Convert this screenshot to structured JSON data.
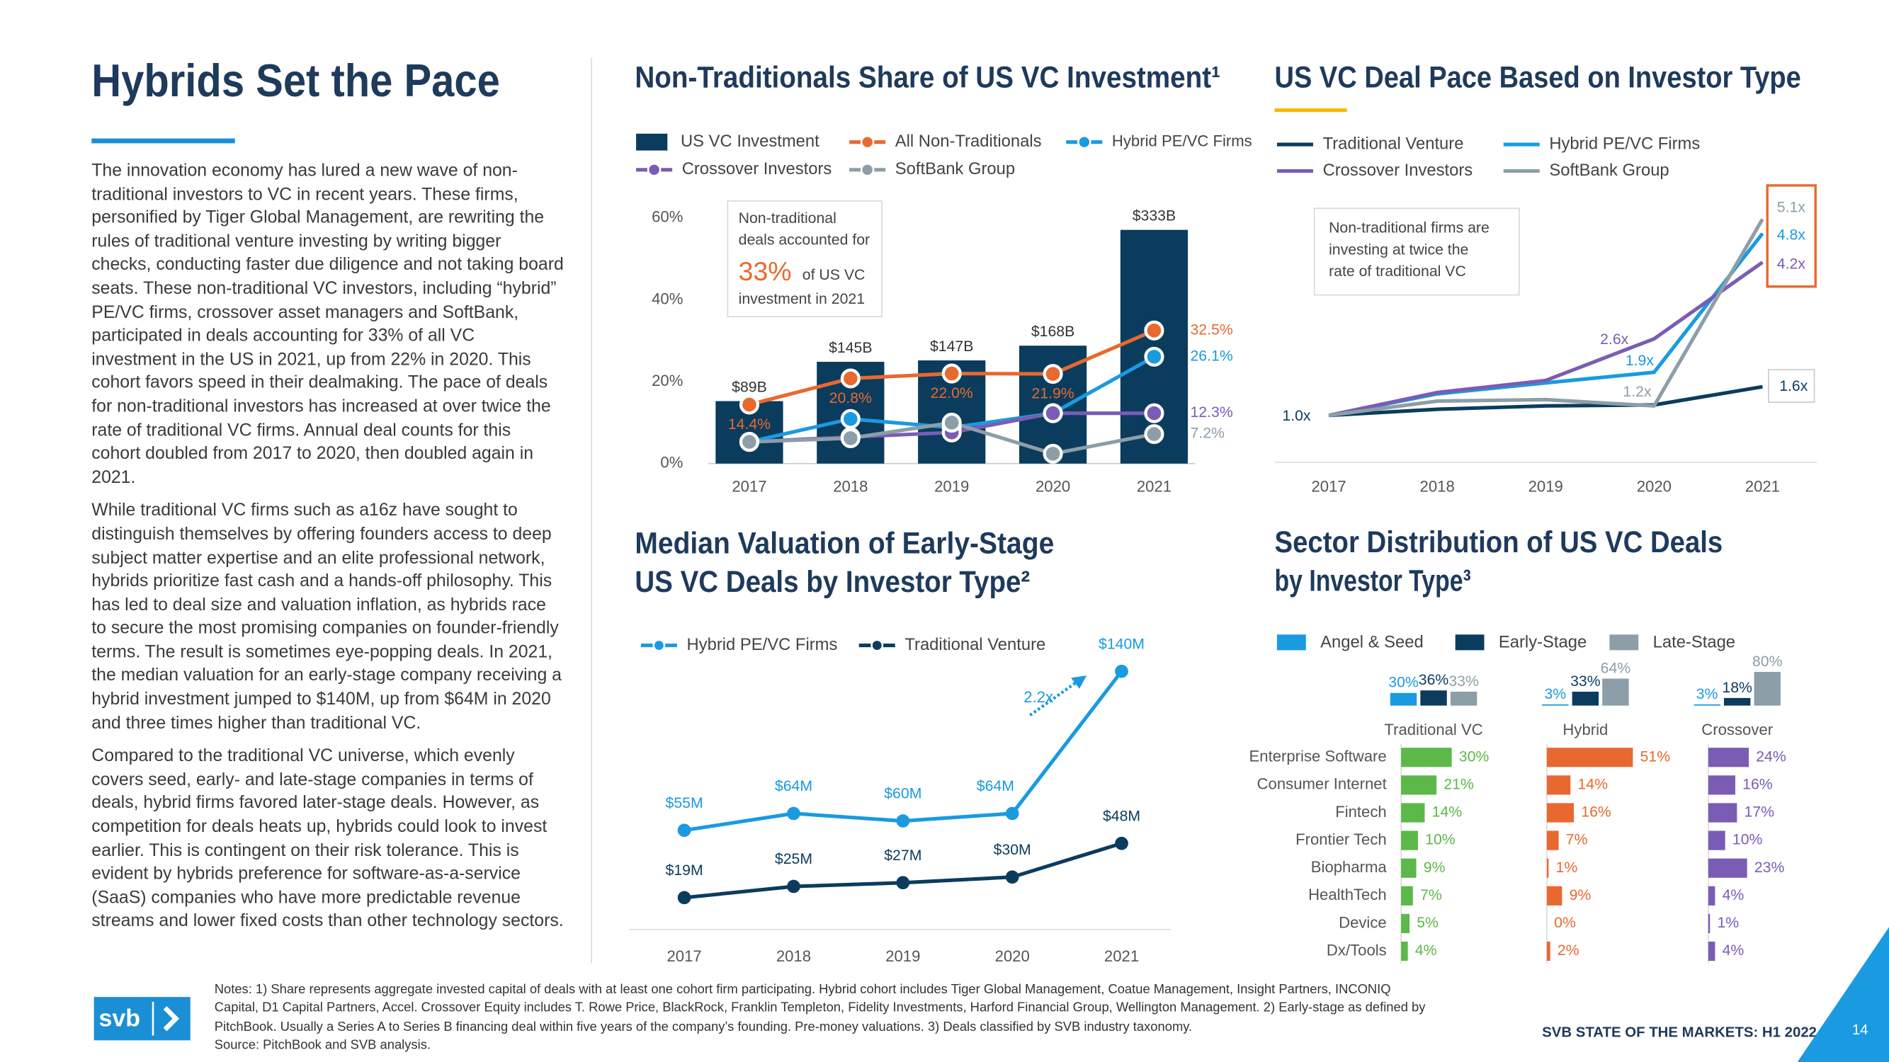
{
  "header": {
    "title": "Hybrids Set the Pace"
  },
  "body": {
    "paragraphs": [
      "The innovation economy has lured a new wave of non-traditional investors to VC in recent years. These firms, personified by Tiger Global Management, are rewriting the rules of traditional venture investing by writing bigger checks, conducting faster due diligence and not taking board seats. These non-traditional VC investors, including “hybrid” PE/VC firms, crossover asset managers and SoftBank, participated in deals accounting for 33% of all VC investment in the US in 2021, up from 22% in 2020. This cohort favors speed in their dealmaking. The pace of deals for non-traditional investors has increased at over twice the rate of traditional VC firms. Annual deal counts for this cohort doubled from 2017 to 2020, then doubled again in 2021.",
      "While traditional VC firms such as a16z have sought to distinguish themselves by offering founders access to deep subject matter expertise and an elite professional network, hybrids prioritize fast cash and a hands-off philosophy. This has led to deal size and valuation inflation, as hybrids race to secure the most promising companies on founder-friendly terms. The result is sometimes eye-popping deals. In 2021, the median valuation for an early-stage company receiving a hybrid investment jumped to $140M, up from $64M in 2020 and three times higher than traditional VC.",
      "Compared to the traditional VC universe, which evenly covers seed, early- and late-stage companies in terms of deals, hybrid firms favored later-stage deals. However, as competition for deals heats up, hybrids could look to invest earlier. This is contingent on their risk tolerance. This is evident by hybrids preference for software-as-a-service (SaaS) companies who have more predictable revenue streams and lower fixed costs than other technology sectors."
    ]
  },
  "chart_data": [
    {
      "type": "combo",
      "title": "Non-Traditionals Share of US VC Investment¹",
      "categories": [
        "2017",
        "2018",
        "2019",
        "2020",
        "2021"
      ],
      "ylim": [
        0,
        60
      ],
      "yticks": [
        {
          "value": 0,
          "label": "0%"
        },
        {
          "value": 20,
          "label": "20%"
        },
        {
          "value": 40,
          "label": "40%"
        },
        {
          "value": 60,
          "label": "60%"
        }
      ],
      "y2lim": [
        0,
        350
      ],
      "grid": false,
      "legend": "top",
      "series": [
        {
          "name": "US VC Investment",
          "type": "bar",
          "axis": "y2",
          "color": "#0b3c5d",
          "values": [
            89,
            145,
            147,
            168,
            333
          ],
          "value_labels": [
            "$89B",
            "$145B",
            "$147B",
            "$168B",
            "$333B"
          ]
        },
        {
          "name": "All Non-Traditionals",
          "type": "line",
          "color": "#e8692f",
          "values": [
            14.4,
            20.8,
            22.0,
            21.9,
            32.5
          ],
          "value_labels": [
            "14.4%",
            "20.8%",
            "22.0%",
            "21.9%",
            "32.5%"
          ]
        },
        {
          "name": "Hybrid PE/VC Firms",
          "type": "line",
          "color": "#1a9ae0",
          "values": [
            5.3,
            10.9,
            8.8,
            12.3,
            26.1
          ],
          "value_labels": [
            null,
            null,
            null,
            null,
            "26.1%"
          ]
        },
        {
          "name": "Crossover Investors",
          "type": "line",
          "color": "#7a5cb5",
          "values": [
            5.3,
            6.5,
            7.6,
            12.3,
            12.3
          ],
          "value_labels": [
            null,
            null,
            null,
            null,
            "12.3%"
          ]
        },
        {
          "name": "SoftBank Group",
          "type": "line",
          "color": "#8c9ea8",
          "values": [
            5.3,
            6.2,
            10.0,
            2.4,
            7.2
          ],
          "value_labels": [
            null,
            null,
            null,
            null,
            "7.2%"
          ]
        }
      ],
      "annotation": {
        "lines": [
          "Non-traditional",
          "deals accounted for"
        ],
        "highlight": "33%",
        "rest": [
          "of US VC",
          "investment in 2021"
        ]
      }
    },
    {
      "type": "line",
      "title": "US VC Deal Pace Based on Investor Type",
      "categories": [
        "2017",
        "2018",
        "2019",
        "2020",
        "2021"
      ],
      "ylim": [
        0.8,
        5.3
      ],
      "legend": "top",
      "series": [
        {
          "name": "Traditional Venture",
          "color": "#0b3c5d",
          "values": [
            1.0,
            1.13,
            1.2,
            1.22,
            1.6
          ],
          "value_labels": [
            "1.0x",
            null,
            null,
            null,
            "1.6x"
          ]
        },
        {
          "name": "Hybrid PE/VC Firms",
          "color": "#1a9ae0",
          "values": [
            1.0,
            1.45,
            1.68,
            1.9,
            4.8
          ],
          "value_labels": [
            null,
            null,
            null,
            "1.9x",
            "4.8x"
          ]
        },
        {
          "name": "Crossover Investors",
          "color": "#7a5cb5",
          "values": [
            1.0,
            1.48,
            1.73,
            2.6,
            4.2
          ],
          "value_labels": [
            null,
            null,
            null,
            "2.6x",
            "4.2x"
          ]
        },
        {
          "name": "SoftBank Group",
          "color": "#8c9ea8",
          "values": [
            1.0,
            1.3,
            1.33,
            1.2,
            5.1
          ],
          "value_labels": [
            null,
            null,
            null,
            "1.2x",
            "5.1x"
          ]
        }
      ],
      "annotation": {
        "lines": [
          "Non-traditional firms are",
          "investing at twice the",
          "rate of traditional VC"
        ]
      }
    },
    {
      "type": "line",
      "title": [
        "Median Valuation of Early-Stage",
        "US VC Deals by Investor Type²"
      ],
      "categories": [
        "2017",
        "2018",
        "2019",
        "2020",
        "2021"
      ],
      "ylim": [
        0,
        150
      ],
      "legend": "top",
      "series": [
        {
          "name": "Hybrid PE/VC Firms",
          "color": "#1a9ae0",
          "values": [
            55,
            64,
            60,
            64,
            140
          ],
          "value_labels": [
            "$55M",
            "$64M",
            "$60M",
            "$64M",
            "$140M"
          ]
        },
        {
          "name": "Traditional Venture",
          "color": "#0b3c5d",
          "values": [
            19,
            25,
            27,
            30,
            48
          ],
          "value_labels": [
            "$19M",
            "$25M",
            "$27M",
            "$30M",
            "$48M"
          ]
        }
      ],
      "annotation": "2.2x"
    },
    {
      "type": "sector-bar",
      "title": [
        "Sector Distribution of US VC Deals",
        "by Investor Type³"
      ],
      "groups": [
        "Traditional VC",
        "Hybrid",
        "Crossover"
      ],
      "stages": {
        "ylim": [
          0,
          100
        ],
        "series": [
          {
            "name": "Angel & Seed",
            "color": "#1a9ae0",
            "values": [
              30,
              3,
              3
            ],
            "value_labels": [
              "30%",
              "3%",
              "3%"
            ]
          },
          {
            "name": "Early-Stage",
            "color": "#0b3c5d",
            "values": [
              36,
              33,
              18
            ],
            "value_labels": [
              "36%",
              "33%",
              "18%"
            ]
          },
          {
            "name": "Late-Stage",
            "color": "#8c9ea8",
            "values": [
              33,
              64,
              80
            ],
            "value_labels": [
              "33%",
              "64%",
              "80%"
            ]
          }
        ]
      },
      "categories": [
        "Enterprise Software",
        "Consumer Internet",
        "Fintech",
        "Frontier Tech",
        "Biopharma",
        "HealthTech",
        "Device",
        "Dx/Tools"
      ],
      "xlim": [
        0,
        60
      ],
      "series": [
        {
          "color": "#5cb848",
          "values": [
            30,
            21,
            14,
            10,
            9,
            7,
            5,
            4
          ],
          "value_labels": [
            "30%",
            "21%",
            "14%",
            "10%",
            "9%",
            "7%",
            "5%",
            "4%"
          ]
        },
        {
          "color": "#e8692f",
          "values": [
            51,
            14,
            16,
            7,
            1,
            9,
            0,
            2
          ],
          "value_labels": [
            "51%",
            "14%",
            "16%",
            "7%",
            "1%",
            "9%",
            "0%",
            "2%"
          ]
        },
        {
          "color": "#7a5cb5",
          "values": [
            24,
            16,
            17,
            10,
            23,
            4,
            1,
            4
          ],
          "value_labels": [
            "24%",
            "16%",
            "17%",
            "10%",
            "23%",
            "4%",
            "1%",
            "4%"
          ]
        }
      ]
    }
  ],
  "notes": {
    "text": "Notes: 1) Share represents aggregate invested capital of deals with at least one cohort firm participating. Hybrid cohort includes Tiger Global Management, Coatue Management, Insight Partners, INCONIQ Capital, D1 Capital Partners, Accel. Crossover Equity includes T. Rowe Price, BlackRock, Franklin Templeton, Fidelity Investments, Harford Financial Group, Wellington Management. 2) Early-stage as defined by PitchBook. Usually a Series A to Series B financing deal within five years of the company’s founding. Pre-money valuations. 3) Deals classified by SVB industry taxonomy.",
    "source": "Source: PitchBook and SVB analysis."
  },
  "footer": {
    "logo": "svb",
    "report": "SVB STATE OF THE MARKETS: H1 2022",
    "page": 14
  }
}
